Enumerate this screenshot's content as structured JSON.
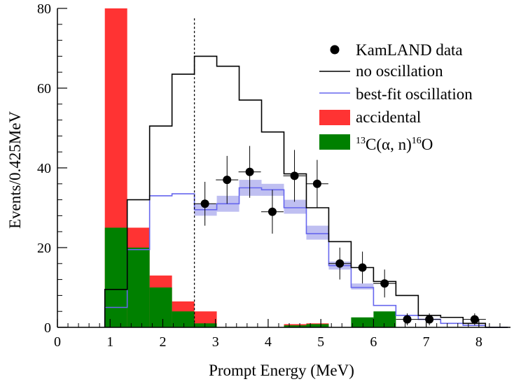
{
  "chart_data": {
    "type": "bar",
    "title": "",
    "xlabel": "Prompt Energy (MeV)",
    "ylabel": "Events/0.425MeV",
    "xlim": [
      0,
      8.6
    ],
    "ylim": [
      0,
      80
    ],
    "xticks": [
      "0",
      "1",
      "2",
      "3",
      "4",
      "5",
      "6",
      "7",
      "8"
    ],
    "yticks": [
      "0",
      "20",
      "40",
      "60",
      "80"
    ],
    "bin_edges": [
      0.9,
      1.325,
      1.75,
      2.175,
      2.6,
      3.025,
      3.45,
      3.875,
      4.3,
      4.725,
      5.15,
      5.575,
      6.0,
      6.425,
      6.85,
      7.275,
      7.7,
      8.125,
      8.55
    ],
    "analysis_threshold": 2.6,
    "grid": false,
    "legend_position": "top-right",
    "legend": {
      "data": "KamLAND data",
      "no_osc": "no oscillation",
      "best_fit": "best-fit oscillation",
      "accidental": "accidental",
      "alpha_n": {
        "mass_c": "13",
        "c": "C(",
        "alpha": "α",
        "rest": ", n)",
        "mass_o": "16",
        "o": "O"
      }
    },
    "colors": {
      "accidental": "#ff3333",
      "alpha_n": "#008000",
      "best_fit": "#6666ee",
      "best_fit_band": "#b8b8f0",
      "no_osc": "#000000",
      "data": "#000000"
    },
    "series": [
      {
        "name": "accidental",
        "kind": "stacked-bar",
        "values": [
          80,
          25,
          13,
          6.5,
          4,
          0,
          0,
          0,
          0.8,
          1,
          0,
          0,
          0,
          0,
          0,
          0,
          0,
          0
        ]
      },
      {
        "name": "13C(α, n)16O",
        "kind": "bar",
        "values": [
          25,
          20,
          10,
          4,
          1,
          0,
          0,
          0,
          0.5,
          0.8,
          0,
          2.5,
          4,
          0,
          0,
          0,
          0,
          0
        ]
      },
      {
        "name": "no oscillation",
        "kind": "step",
        "values": [
          9.5,
          32,
          50.5,
          63.5,
          68,
          65.5,
          57,
          49,
          38.5,
          30,
          21.5,
          15,
          11.5,
          8,
          3,
          2.5,
          1,
          0
        ]
      },
      {
        "name": "best-fit oscillation",
        "kind": "step",
        "values": [
          5,
          19.5,
          33,
          33.5,
          29.5,
          31,
          35,
          34.5,
          30,
          23.5,
          15.5,
          10,
          5.5,
          3,
          2,
          1,
          0.5,
          0
        ],
        "band_low": [
          null,
          null,
          null,
          null,
          28,
          29,
          33,
          33,
          28.5,
          22,
          14.5,
          9.5,
          null,
          null,
          null,
          null,
          null,
          null
        ],
        "band_high": [
          null,
          null,
          null,
          null,
          31,
          33,
          37,
          36,
          32,
          25.5,
          16.5,
          11,
          null,
          null,
          null,
          null,
          null,
          null
        ]
      },
      {
        "name": "KamLAND data",
        "kind": "points",
        "points": [
          {
            "x": 2.8,
            "y": 31,
            "err": 5.5
          },
          {
            "x": 3.22,
            "y": 37,
            "err": 6
          },
          {
            "x": 3.65,
            "y": 39,
            "err": 6.5
          },
          {
            "x": 4.08,
            "y": 29,
            "err": 5.5
          },
          {
            "x": 4.5,
            "y": 38,
            "err": 6.5
          },
          {
            "x": 4.93,
            "y": 36,
            "err": 6
          },
          {
            "x": 5.36,
            "y": 16,
            "err": 4
          },
          {
            "x": 5.79,
            "y": 15,
            "err": 4
          },
          {
            "x": 6.21,
            "y": 11,
            "err": 3.5
          },
          {
            "x": 6.64,
            "y": 2,
            "err": 1.5
          },
          {
            "x": 7.06,
            "y": 2,
            "err": 1.5
          },
          {
            "x": 7.92,
            "y": 2,
            "err": 1.5
          }
        ]
      }
    ]
  }
}
